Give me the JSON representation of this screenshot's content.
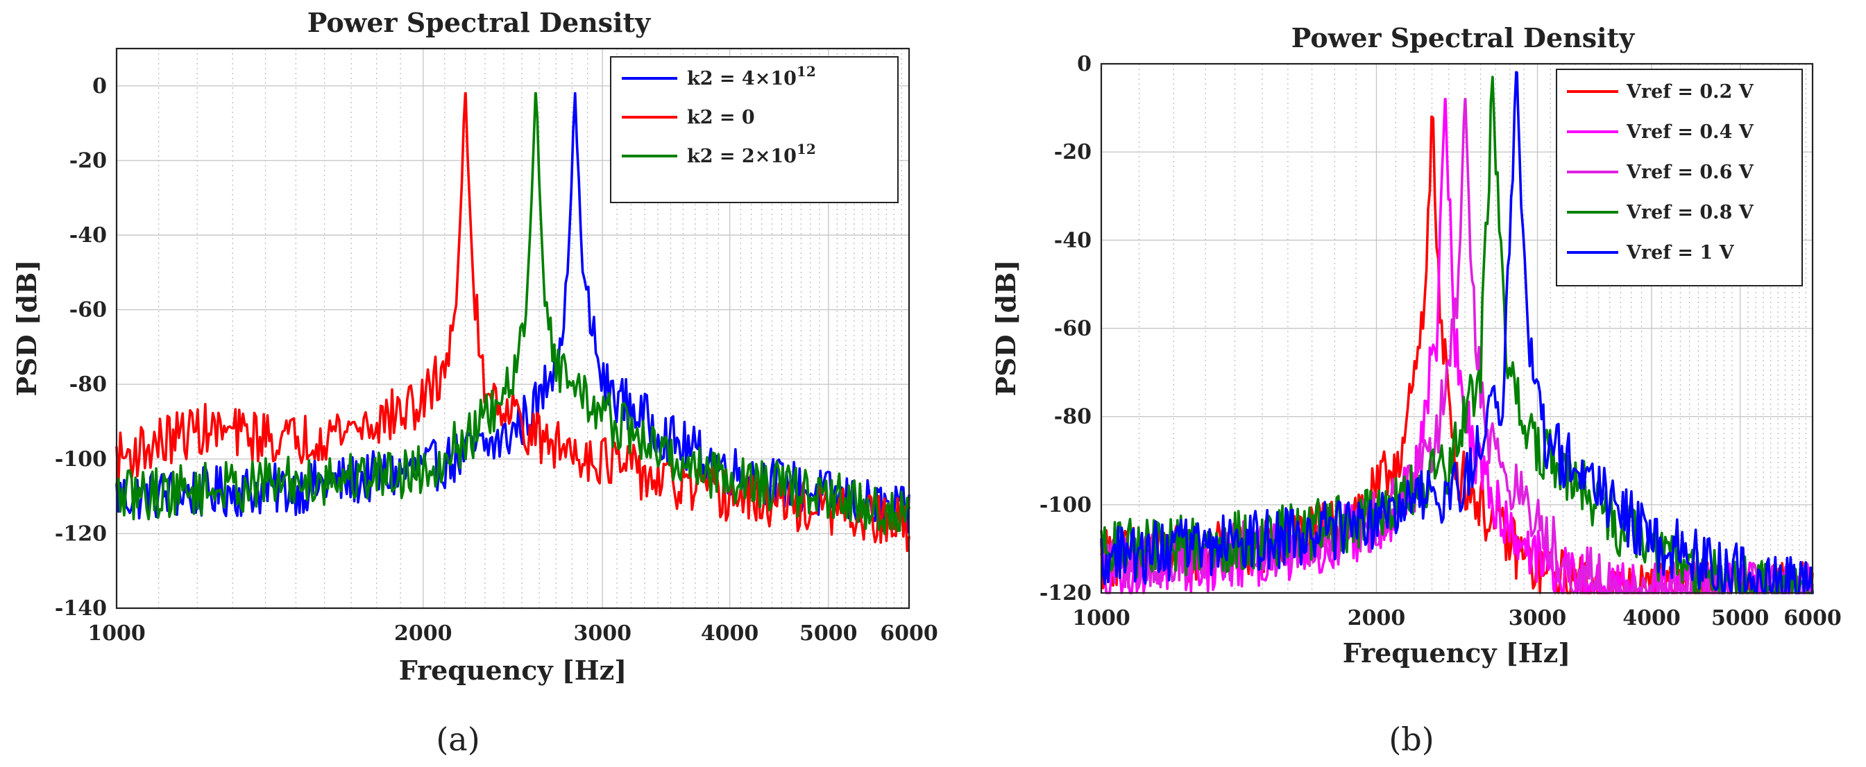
{
  "chart_data": [
    {
      "type": "line",
      "panel": "a",
      "caption": "(a)",
      "title": "Power Spectral Density",
      "xlabel": "Frequency [Hz]",
      "ylabel": "PSD [dB]",
      "xscale": "log",
      "xlim": [
        1000,
        6000
      ],
      "ylim": [
        -140,
        10
      ],
      "xticks": [
        1000,
        2000,
        3000,
        4000,
        5000,
        6000
      ],
      "xtick_labels": [
        "1000",
        "2000",
        "3000",
        "4000",
        "5000",
        "6000"
      ],
      "yticks": [
        0,
        -20,
        -40,
        -60,
        -80,
        -100,
        -120,
        -140
      ],
      "ytick_labels": [
        "0",
        "-20",
        "-40",
        "-60",
        "-80",
        "-100",
        "-120",
        "-140"
      ],
      "grid": true,
      "legend_position": "top-right",
      "series": [
        {
          "name": "k2 = 4×10",
          "name_sup": "12",
          "color": "#0000ff",
          "peak_hz": 2820,
          "peak_db": -2,
          "floor": [
            [
              1000,
              -110
            ],
            [
              1500,
              -108
            ],
            [
              2000,
              -103
            ],
            [
              2400,
              -95
            ],
            [
              2600,
              -85
            ],
            [
              2700,
              -72
            ],
            [
              2780,
              -55
            ],
            [
              2820,
              -2
            ],
            [
              2860,
              -50
            ],
            [
              3000,
              -80
            ],
            [
              3500,
              -95
            ],
            [
              4000,
              -103
            ],
            [
              5000,
              -110
            ],
            [
              6000,
              -115
            ]
          ]
        },
        {
          "name": "k2 = 0",
          "color": "#ff0000",
          "peak_hz": 2200,
          "peak_db": -2,
          "floor": [
            [
              1000,
              -100
            ],
            [
              1200,
              -92
            ],
            [
              1500,
              -95
            ],
            [
              1800,
              -90
            ],
            [
              2000,
              -85
            ],
            [
              2100,
              -75
            ],
            [
              2170,
              -55
            ],
            [
              2200,
              -2
            ],
            [
              2240,
              -55
            ],
            [
              2300,
              -80
            ],
            [
              2600,
              -95
            ],
            [
              3000,
              -100
            ],
            [
              3500,
              -107
            ],
            [
              4000,
              -110
            ],
            [
              5000,
              -114
            ],
            [
              6000,
              -118
            ]
          ]
        },
        {
          "name": "k2 = 2×10",
          "name_sup": "12",
          "color": "#008000",
          "peak_hz": 2580,
          "peak_db": -2,
          "floor": [
            [
              1000,
              -110
            ],
            [
              1500,
              -106
            ],
            [
              2000,
              -103
            ],
            [
              2200,
              -95
            ],
            [
              2400,
              -85
            ],
            [
              2500,
              -70
            ],
            [
              2550,
              -50
            ],
            [
              2580,
              -2
            ],
            [
              2620,
              -50
            ],
            [
              2700,
              -75
            ],
            [
              3000,
              -88
            ],
            [
              3500,
              -100
            ],
            [
              4000,
              -105
            ],
            [
              5000,
              -110
            ],
            [
              6000,
              -116
            ]
          ]
        }
      ]
    },
    {
      "type": "line",
      "panel": "b",
      "caption": "(b)",
      "title": "Power Spectral Density",
      "xlabel": "Frequency [Hz]",
      "ylabel": "PSD [dB]",
      "xscale": "log",
      "xlim": [
        1000,
        6000
      ],
      "ylim": [
        -120,
        0
      ],
      "xticks": [
        1000,
        2000,
        3000,
        4000,
        5000,
        6000
      ],
      "xtick_labels": [
        "1000",
        "2000",
        "3000",
        "4000",
        "5000",
        "6000"
      ],
      "yticks": [
        0,
        -20,
        -40,
        -60,
        -80,
        -100,
        -120
      ],
      "ytick_labels": [
        "0",
        "-20",
        "-40",
        "-60",
        "-80",
        "-100",
        "-120"
      ],
      "grid": true,
      "legend_position": "top-right",
      "series": [
        {
          "name": "Vref = 0.2 V",
          "color": "#ff0000",
          "peak_hz": 2300,
          "peak_db": -12,
          "floor": [
            [
              1000,
              -112
            ],
            [
              1500,
              -110
            ],
            [
              1800,
              -105
            ],
            [
              2000,
              -98
            ],
            [
              2150,
              -85
            ],
            [
              2250,
              -60
            ],
            [
              2300,
              -12
            ],
            [
              2350,
              -60
            ],
            [
              2450,
              -92
            ],
            [
              2700,
              -105
            ],
            [
              3000,
              -115
            ],
            [
              3500,
              -120
            ],
            [
              6000,
              -120
            ]
          ]
        },
        {
          "name": "Vref = 0.4 V",
          "color": "#ff00ff",
          "peak_hz": 2380,
          "peak_db": -8,
          "floor": [
            [
              1000,
              -115
            ],
            [
              1500,
              -112
            ],
            [
              2000,
              -105
            ],
            [
              2200,
              -95
            ],
            [
              2330,
              -60
            ],
            [
              2380,
              -8
            ],
            [
              2430,
              -60
            ],
            [
              2550,
              -90
            ],
            [
              2800,
              -105
            ],
            [
              3100,
              -115
            ],
            [
              3500,
              -120
            ],
            [
              6000,
              -120
            ]
          ]
        },
        {
          "name": "Vref = 0.6 V",
          "color": "#e020e0",
          "peak_hz": 2500,
          "peak_db": -8,
          "floor": [
            [
              1000,
              -113
            ],
            [
              1500,
              -110
            ],
            [
              2000,
              -104
            ],
            [
              2300,
              -90
            ],
            [
              2440,
              -60
            ],
            [
              2500,
              -8
            ],
            [
              2560,
              -60
            ],
            [
              2650,
              -85
            ],
            [
              2900,
              -100
            ],
            [
              3200,
              -112
            ],
            [
              3600,
              -120
            ],
            [
              6000,
              -120
            ]
          ]
        },
        {
          "name": "Vref = 0.8 V",
          "color": "#008000",
          "peak_hz": 2680,
          "peak_db": -3,
          "floor": [
            [
              1000,
              -110
            ],
            [
              1500,
              -108
            ],
            [
              2000,
              -103
            ],
            [
              2400,
              -92
            ],
            [
              2600,
              -70
            ],
            [
              2680,
              -3
            ],
            [
              2760,
              -60
            ],
            [
              2900,
              -85
            ],
            [
              3200,
              -92
            ],
            [
              3600,
              -103
            ],
            [
              4000,
              -110
            ],
            [
              5000,
              -118
            ],
            [
              6000,
              -120
            ]
          ]
        },
        {
          "name": "Vref = 1 V",
          "color": "#0000ff",
          "peak_hz": 2850,
          "peak_db": -2,
          "floor": [
            [
              1000,
              -112
            ],
            [
              1500,
              -108
            ],
            [
              2000,
              -104
            ],
            [
              2500,
              -95
            ],
            [
              2750,
              -75
            ],
            [
              2850,
              -2
            ],
            [
              2920,
              -60
            ],
            [
              3050,
              -85
            ],
            [
              3400,
              -95
            ],
            [
              4000,
              -108
            ],
            [
              5000,
              -116
            ],
            [
              6000,
              -120
            ]
          ]
        }
      ]
    }
  ]
}
